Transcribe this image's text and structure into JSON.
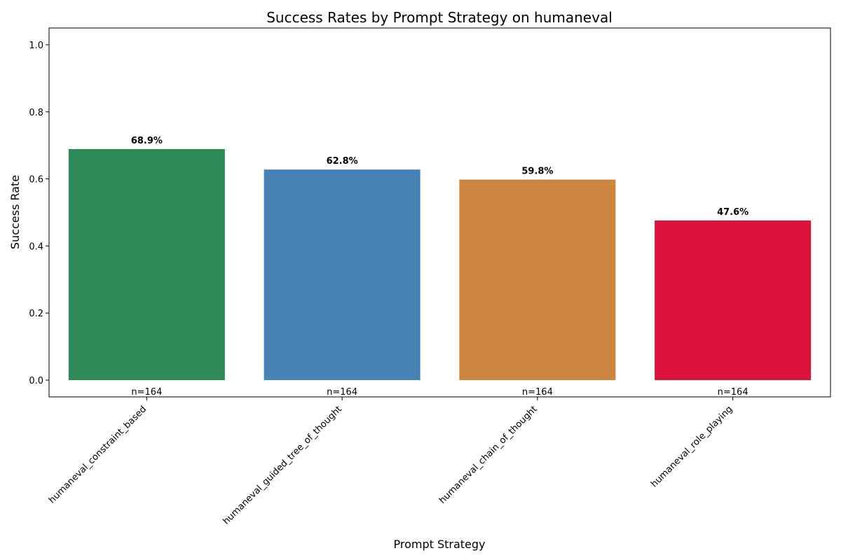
{
  "chart_data": {
    "type": "bar",
    "title": "Success Rates by Prompt Strategy on humaneval",
    "xlabel": "Prompt Strategy",
    "ylabel": "Success Rate",
    "ylim": [
      -0.05,
      1.05
    ],
    "yticks": [
      0.0,
      0.2,
      0.4,
      0.6,
      0.8,
      1.0
    ],
    "ytick_labels": [
      "0.0",
      "0.2",
      "0.4",
      "0.6",
      "0.8",
      "1.0"
    ],
    "categories": [
      "humaneval_constraint_based",
      "humaneval_guided_tree_of_thought",
      "humaneval_chain_of_thought",
      "humaneval_role_playing"
    ],
    "values": [
      0.689,
      0.628,
      0.598,
      0.476
    ],
    "value_labels": [
      "68.9%",
      "62.8%",
      "59.8%",
      "47.6%"
    ],
    "count_labels": [
      "n=164",
      "n=164",
      "n=164",
      "n=164"
    ],
    "colors": [
      "#2e8b57",
      "#4682b4",
      "#cd853f",
      "#dc143c"
    ],
    "grid": false,
    "legend": "none"
  }
}
